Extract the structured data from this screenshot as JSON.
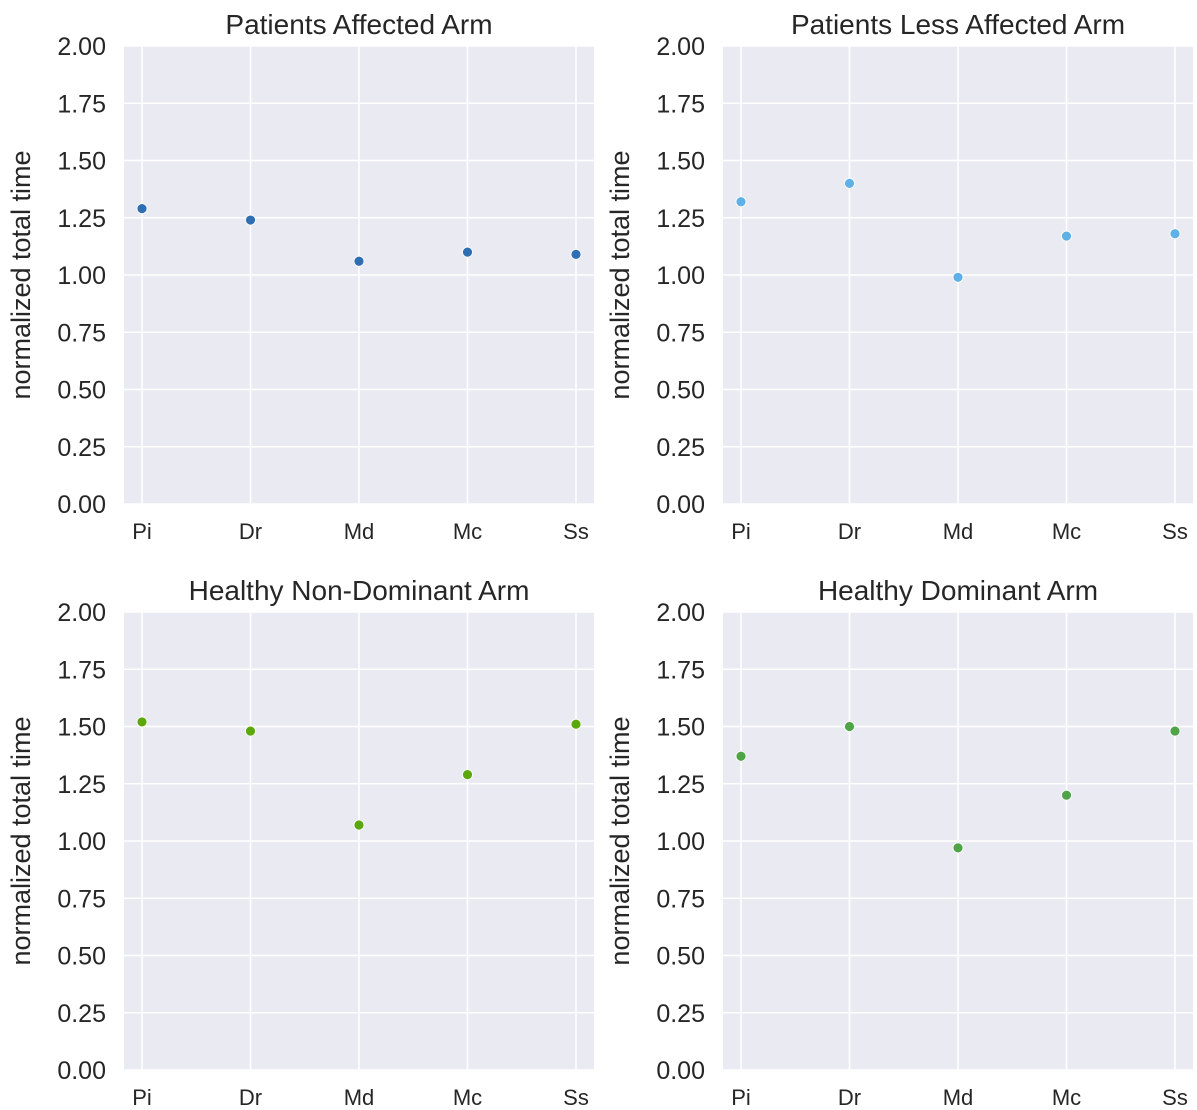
{
  "chart_data": [
    {
      "type": "scatter",
      "title": "Patients Affected Arm",
      "ylabel": "normalized total time",
      "xlabel": "",
      "categories": [
        "Pi",
        "Dr",
        "Md",
        "Mc",
        "Ss"
      ],
      "values": [
        1.29,
        1.24,
        1.06,
        1.1,
        1.09
      ],
      "color": "#2e6fb4",
      "ylim": [
        0,
        2
      ],
      "yticks": [
        "0.00",
        "0.25",
        "0.50",
        "0.75",
        "1.00",
        "1.25",
        "1.50",
        "1.75",
        "2.00"
      ],
      "grid": true
    },
    {
      "type": "scatter",
      "title": "Patients Less Affected Arm",
      "ylabel": "normalized total time",
      "xlabel": "",
      "categories": [
        "Pi",
        "Dr",
        "Md",
        "Mc",
        "Ss"
      ],
      "values": [
        1.32,
        1.4,
        0.99,
        1.17,
        1.18
      ],
      "color": "#5fb0e6",
      "ylim": [
        0,
        2
      ],
      "yticks": [
        "0.00",
        "0.25",
        "0.50",
        "0.75",
        "1.00",
        "1.25",
        "1.50",
        "1.75",
        "2.00"
      ],
      "grid": true
    },
    {
      "type": "scatter",
      "title": "Healthy Non-Dominant Arm",
      "ylabel": "normalized total time",
      "xlabel": "",
      "categories": [
        "Pi",
        "Dr",
        "Md",
        "Mc",
        "Ss"
      ],
      "values": [
        1.52,
        1.48,
        1.07,
        1.29,
        1.51
      ],
      "color": "#5aa80c",
      "ylim": [
        0,
        2
      ],
      "yticks": [
        "0.00",
        "0.25",
        "0.50",
        "0.75",
        "1.00",
        "1.25",
        "1.50",
        "1.75",
        "2.00"
      ],
      "grid": true
    },
    {
      "type": "scatter",
      "title": "Healthy Dominant Arm",
      "ylabel": "normalized total time",
      "xlabel": "",
      "categories": [
        "Pi",
        "Dr",
        "Md",
        "Mc",
        "Ss"
      ],
      "values": [
        1.37,
        1.5,
        0.97,
        1.2,
        1.48
      ],
      "color": "#4ea447",
      "ylim": [
        0,
        2
      ],
      "yticks": [
        "0.00",
        "0.25",
        "0.50",
        "0.75",
        "1.00",
        "1.25",
        "1.50",
        "1.75",
        "2.00"
      ],
      "grid": true
    }
  ],
  "colors": {
    "plot_background": "#eaeaf2",
    "grid": "#ffffff",
    "text": "#262626"
  }
}
